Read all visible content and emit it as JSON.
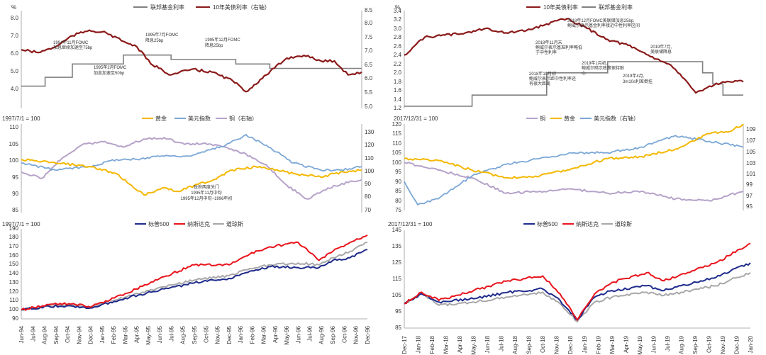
{
  "colors": {
    "dark_red": "#8B1A1A",
    "gray": "#808080",
    "gold": "#F4B800",
    "blue": "#7BA7D6",
    "purple": "#B6A3C9",
    "navy": "#1E2B8C",
    "red": "#E8141C",
    "lightgray": "#A8A8A8"
  },
  "chart_data": [
    {
      "id": "rates-1990s",
      "type": "line",
      "left_unit": "%",
      "ylim": [
        3.0,
        8.5
      ],
      "y2lim": [
        5.0,
        8.5
      ],
      "yticks": [
        "4.0",
        "5.0",
        "6.0",
        "7.0",
        "8.0"
      ],
      "y2ticks": [
        "5.0",
        "5.5",
        "6.0",
        "6.5",
        "7.0",
        "7.5",
        "8.0",
        "8.5"
      ],
      "series": [
        {
          "name": "联邦基金利率",
          "axis": "left",
          "color_key": "gray",
          "x": [
            0,
            0.07,
            0.07,
            0.15,
            0.15,
            0.3,
            0.3,
            0.44,
            0.44,
            0.63,
            0.63,
            0.73,
            0.73,
            1.0
          ],
          "values": [
            4.25,
            4.25,
            4.75,
            4.75,
            5.5,
            5.5,
            6.0,
            6.0,
            5.75,
            5.75,
            5.5,
            5.5,
            5.25,
            5.25
          ]
        },
        {
          "name": "10年美债利率（右轴）",
          "axis": "right",
          "color_key": "dark_red",
          "x": [
            0,
            0.05,
            0.1,
            0.15,
            0.2,
            0.25,
            0.3,
            0.34,
            0.38,
            0.44,
            0.5,
            0.56,
            0.62,
            0.66,
            0.72,
            0.78,
            0.83,
            0.88,
            0.92,
            0.96,
            1.0
          ],
          "values": [
            7.1,
            7.0,
            7.2,
            7.6,
            7.8,
            7.7,
            7.4,
            7.2,
            6.6,
            6.2,
            6.4,
            6.3,
            6.0,
            5.6,
            6.2,
            6.8,
            6.9,
            6.7,
            6.7,
            6.2,
            6.3
          ]
        }
      ],
      "annotations": [
        {
          "lines": [
            "1994年11月FOMC",
            "加息继续加速至75bp"
          ]
        },
        {
          "lines": [
            "1995年2月FOMC",
            "加息加速至50bp"
          ]
        },
        {
          "lines": [
            "1995年7月FOMC",
            "降息25bp"
          ]
        },
        {
          "lines": [
            "1995年12月FOMC",
            "降息25bp"
          ]
        }
      ]
    },
    {
      "id": "rates-2010s",
      "type": "line",
      "left_unit": "%",
      "ylim": [
        1.2,
        3.4
      ],
      "yticks": [
        "1.2",
        "1.4",
        "1.6",
        "1.8",
        "2.0",
        "2.2",
        "2.4",
        "2.6",
        "2.8",
        "3.0",
        "3.2",
        "3.4"
      ],
      "series": [
        {
          "name": "10年美债利率",
          "axis": "left",
          "color_key": "dark_red",
          "x": [
            0,
            0.06,
            0.12,
            0.18,
            0.24,
            0.3,
            0.36,
            0.42,
            0.48,
            0.54,
            0.6,
            0.66,
            0.72,
            0.78,
            0.82,
            0.86,
            0.9,
            0.94,
            1.0
          ],
          "values": [
            2.4,
            2.8,
            2.85,
            2.9,
            3.0,
            2.9,
            2.95,
            3.1,
            3.22,
            3.0,
            2.75,
            2.62,
            2.4,
            2.2,
            1.9,
            1.55,
            1.7,
            1.8,
            1.8
          ]
        },
        {
          "name": "联邦基金利率",
          "axis": "left",
          "color_key": "gray",
          "x": [
            0,
            0.2,
            0.2,
            0.42,
            0.42,
            0.6,
            0.6,
            0.88,
            0.88,
            0.91,
            0.91,
            0.94,
            0.94,
            1.0
          ],
          "values": [
            1.25,
            1.25,
            1.5,
            1.5,
            2.0,
            2.0,
            2.25,
            2.25,
            2.0,
            2.0,
            1.75,
            1.75,
            1.5,
            1.5
          ]
        }
      ],
      "annotations": [
        {
          "lines": [
            "2018年12月FOMC美联储加息25bp,",
            "鲍威尔表示基金利率接近中性利率区间"
          ]
        },
        {
          "lines": [
            "2018年11月末",
            "鲍威尔表示基准利率略低",
            "于中性利率"
          ]
        },
        {
          "lines": [
            "2018年10月初",
            "鲍威尔表示距中性利率还",
            "有很大距离"
          ]
        },
        {
          "lines": [
            "2019年1月初,",
            "鲍威尔暗示政策保持耐",
            "心"
          ]
        },
        {
          "lines": [
            "2019年7月,",
            "美联储降息"
          ]
        },
        {
          "lines": [
            "2019年4月,",
            "3m10s利差倒挂"
          ]
        }
      ]
    },
    {
      "id": "assets-1990s",
      "type": "line",
      "base_label": "1997/7/1 = 100",
      "ylim": [
        85,
        110
      ],
      "y2lim": [
        70,
        135
      ],
      "yticks": [
        "85",
        "90",
        "95",
        "100",
        "105",
        "110"
      ],
      "y2ticks": [
        "70",
        "80",
        "90",
        "100",
        "110",
        "120",
        "130"
      ],
      "series": [
        {
          "name": "黄金",
          "axis": "left",
          "color_key": "gold",
          "x": [
            0,
            0.1,
            0.2,
            0.28,
            0.33,
            0.36,
            0.42,
            0.46,
            0.52,
            0.56,
            0.62,
            0.7,
            0.8,
            0.88,
            0.92,
            1.0
          ],
          "values": [
            100,
            99,
            98,
            96,
            92,
            90,
            92,
            91,
            93,
            94,
            97,
            98,
            96,
            95,
            96,
            97
          ]
        },
        {
          "name": "美元指数",
          "axis": "left",
          "color_key": "blue",
          "x": [
            0,
            0.1,
            0.2,
            0.28,
            0.34,
            0.4,
            0.5,
            0.6,
            0.66,
            0.72,
            0.8,
            0.88,
            0.94,
            1.0
          ],
          "values": [
            99,
            97,
            98,
            100,
            100,
            101,
            101,
            104,
            107,
            104,
            99,
            97,
            97,
            98
          ]
        },
        {
          "name": "铜（右轴）",
          "axis": "right",
          "color_key": "purple",
          "x": [
            0,
            0.06,
            0.12,
            0.18,
            0.24,
            0.3,
            0.36,
            0.42,
            0.48,
            0.54,
            0.6,
            0.66,
            0.72,
            0.78,
            0.84,
            0.9,
            0.96,
            1.0
          ],
          "values": [
            100,
            95,
            110,
            120,
            122,
            118,
            124,
            125,
            120,
            121,
            118,
            113,
            105,
            90,
            80,
            88,
            92,
            94
          ]
        }
      ],
      "annotations": [
        {
          "lines": [
            "政府两度关门",
            "1995年11月中旬",
            "1995年12月中旬~1996年初"
          ]
        }
      ]
    },
    {
      "id": "assets-2010s",
      "type": "line",
      "base_label": "2017/12/31 = 100",
      "ylim": [
        75,
        120
      ],
      "y2lim": [
        95,
        110
      ],
      "yticks": [
        "75",
        "80",
        "85",
        "90",
        "95",
        "100",
        "105",
        "110",
        "115",
        "120"
      ],
      "y2ticks": [
        "95",
        "97",
        "99",
        "101",
        "103",
        "105",
        "107",
        "109"
      ],
      "series": [
        {
          "name": "铜",
          "axis": "left",
          "color_key": "purple",
          "x": [
            0,
            0.1,
            0.2,
            0.3,
            0.4,
            0.5,
            0.6,
            0.7,
            0.8,
            0.9,
            1.0
          ],
          "values": [
            100,
            96,
            92,
            84,
            85,
            86,
            84,
            85,
            81,
            80,
            85
          ]
        },
        {
          "name": "黄金",
          "axis": "left",
          "color_key": "gold",
          "x": [
            0,
            0.1,
            0.2,
            0.3,
            0.4,
            0.5,
            0.6,
            0.7,
            0.8,
            0.9,
            0.96,
            1.0
          ],
          "values": [
            102,
            101,
            96,
            92,
            93,
            97,
            102,
            103,
            107,
            115,
            116,
            120
          ]
        },
        {
          "name": "美元指数（右轴）",
          "axis": "right",
          "color_key": "blue",
          "x": [
            0,
            0.04,
            0.1,
            0.2,
            0.3,
            0.4,
            0.5,
            0.6,
            0.7,
            0.8,
            0.9,
            1.0
          ],
          "values": [
            100,
            96,
            97,
            101,
            103,
            104,
            105,
            105,
            106,
            108,
            107,
            106
          ]
        }
      ]
    },
    {
      "id": "stocks-1990s",
      "type": "line",
      "base_label": "1997/7/1 = 100",
      "ylim": [
        90,
        190
      ],
      "yticks": [
        "90",
        "100",
        "110",
        "120",
        "130",
        "140",
        "150",
        "160",
        "170",
        "180",
        "190"
      ],
      "xlabels": [
        "Jun-94",
        "Jul-94",
        "Aug-94",
        "Sep-94",
        "Oct-94",
        "Nov-94",
        "Dec-94",
        "Jan-95",
        "Feb-95",
        "Mar-95",
        "Apr-95",
        "May-95",
        "Jun-95",
        "Jul-95",
        "Aug-95",
        "Sep-95",
        "Oct-95",
        "Nov-95",
        "Dec-95",
        "Jan-96",
        "Feb-96",
        "Mar-96",
        "Apr-96",
        "May-96",
        "Jun-96",
        "Jul-96",
        "Aug-96",
        "Sep-96",
        "Oct-96",
        "Nov-96",
        "Dec-96"
      ],
      "series": [
        {
          "name": "标普500",
          "color_key": "navy",
          "x": [
            0,
            0.08,
            0.15,
            0.2,
            0.3,
            0.4,
            0.5,
            0.6,
            0.66,
            0.72,
            0.8,
            0.86,
            0.9,
            0.95,
            1.0
          ],
          "values": [
            100,
            104,
            104,
            102,
            113,
            122,
            130,
            135,
            143,
            148,
            147,
            147,
            155,
            158,
            167
          ]
        },
        {
          "name": "纳斯达克",
          "color_key": "red",
          "x": [
            0,
            0.08,
            0.15,
            0.2,
            0.3,
            0.4,
            0.5,
            0.6,
            0.66,
            0.72,
            0.8,
            0.86,
            0.9,
            0.95,
            1.0
          ],
          "values": [
            100,
            106,
            107,
            103,
            118,
            135,
            150,
            150,
            162,
            170,
            175,
            155,
            165,
            175,
            183
          ]
        },
        {
          "name": "道琼斯",
          "color_key": "lightgray",
          "x": [
            0,
            0.08,
            0.15,
            0.2,
            0.3,
            0.4,
            0.5,
            0.6,
            0.66,
            0.72,
            0.8,
            0.86,
            0.9,
            0.95,
            1.0
          ],
          "values": [
            100,
            105,
            105,
            103,
            114,
            125,
            133,
            138,
            146,
            150,
            152,
            150,
            158,
            165,
            175
          ]
        }
      ]
    },
    {
      "id": "stocks-2010s",
      "type": "line",
      "base_label": "2017/12/31 = 100",
      "ylim": [
        85,
        145
      ],
      "yticks": [
        "85",
        "95",
        "105",
        "115",
        "125",
        "135",
        "145"
      ],
      "xlabels": [
        "Dec-17",
        "Jan-18",
        "Feb-18",
        "Mar-18",
        "Apr-18",
        "May-18",
        "Jun-18",
        "Jul-18",
        "Aug-18",
        "Sep-18",
        "Oct-18",
        "Nov-18",
        "Dec-18",
        "Jan-19",
        "Feb-19",
        "Mar-19",
        "Apr-19",
        "May-19",
        "Jun-19",
        "Jul-19",
        "Aug-19",
        "Sep-19",
        "Oct-19",
        "Nov-19",
        "Dec-19",
        "Jan-20"
      ],
      "series": [
        {
          "name": "标普500",
          "color_key": "navy",
          "x": [
            0,
            0.05,
            0.1,
            0.2,
            0.3,
            0.4,
            0.45,
            0.5,
            0.55,
            0.6,
            0.7,
            0.75,
            0.8,
            0.9,
            1.0
          ],
          "values": [
            100,
            106,
            101,
            103,
            107,
            109,
            102,
            90,
            104,
            108,
            111,
            108,
            111,
            116,
            125
          ]
        },
        {
          "name": "纳斯达克",
          "color_key": "red",
          "x": [
            0,
            0.05,
            0.1,
            0.2,
            0.3,
            0.4,
            0.45,
            0.5,
            0.55,
            0.6,
            0.7,
            0.75,
            0.8,
            0.9,
            1.0
          ],
          "values": [
            100,
            107,
            102,
            108,
            114,
            117,
            106,
            90,
            106,
            113,
            119,
            114,
            118,
            125,
            137
          ]
        },
        {
          "name": "道琼斯",
          "color_key": "lightgray",
          "x": [
            0,
            0.05,
            0.1,
            0.2,
            0.3,
            0.4,
            0.45,
            0.5,
            0.55,
            0.6,
            0.7,
            0.75,
            0.8,
            0.9,
            1.0
          ],
          "values": [
            100,
            106,
            99,
            101,
            104,
            107,
            100,
            89,
            101,
            104,
            107,
            105,
            107,
            111,
            119
          ]
        }
      ]
    }
  ]
}
